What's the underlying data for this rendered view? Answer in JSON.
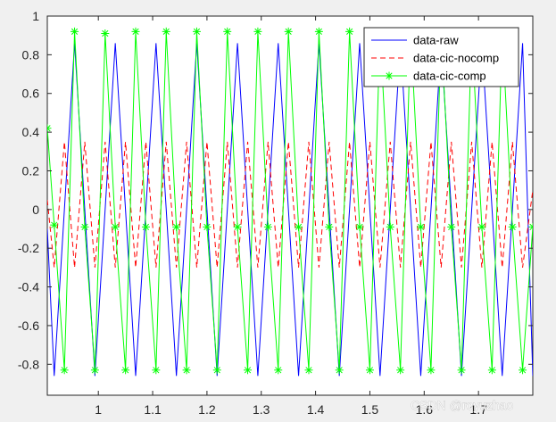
{
  "watermark": "CSDN @royuzhao",
  "chart_data": {
    "type": "line",
    "title": "",
    "xlabel": "",
    "ylabel": "",
    "xlim": [
      0.906,
      1.8
    ],
    "ylim": [
      -0.96,
      1.0
    ],
    "grid": false,
    "legend": {
      "placement": "top-right"
    },
    "x_ticks": [
      1,
      1.1,
      1.2,
      1.3,
      1.4,
      1.5,
      1.6,
      1.7
    ],
    "x_tick_labels": [
      "1",
      "1.1",
      "1.2",
      "1.3",
      "1.4",
      "1.5",
      "1.6",
      "1.7"
    ],
    "y_ticks": [
      1,
      0.8,
      0.6,
      0.4,
      0.2,
      0,
      -0.2,
      -0.4,
      -0.6,
      -0.8
    ],
    "y_tick_labels": [
      "1",
      "0.8",
      "0.6",
      "0.4",
      "0.2",
      "0",
      "-0.2",
      "-0.4",
      "-0.6",
      "-0.8"
    ],
    "series": [
      {
        "name": "data-raw",
        "color": "#0000ff",
        "style": "solid",
        "marker": "none",
        "x": [
          0.906,
          0.9187,
          0.9375,
          0.9562,
          0.975,
          0.9937,
          1.0125,
          1.0312,
          1.05,
          1.0687,
          1.0875,
          1.1062,
          1.125,
          1.1437,
          1.1625,
          1.1812,
          1.2,
          1.2187,
          1.2375,
          1.2562,
          1.275,
          1.2937,
          1.3125,
          1.3312,
          1.35,
          1.3687,
          1.3875,
          1.4062,
          1.425,
          1.4437,
          1.4625,
          1.4812,
          1.5,
          1.5187,
          1.5375,
          1.5562,
          1.575,
          1.5937,
          1.6125,
          1.6312,
          1.65,
          1.6687,
          1.6875,
          1.7062,
          1.725,
          1.7437,
          1.7625,
          1.7812,
          1.8
        ],
        "y": [
          -0.1,
          -0.86,
          0.0,
          0.86,
          0.0,
          -0.86,
          0.0,
          0.86,
          0.0,
          -0.86,
          0.0,
          0.86,
          0.0,
          -0.86,
          0.0,
          0.86,
          0.0,
          -0.86,
          0.0,
          0.86,
          0.0,
          -0.86,
          0.0,
          0.86,
          0.0,
          -0.86,
          0.0,
          0.86,
          0.0,
          -0.86,
          0.0,
          0.86,
          0.0,
          -0.86,
          0.0,
          0.86,
          0.0,
          -0.86,
          0.0,
          0.86,
          0.0,
          -0.86,
          0.0,
          0.86,
          0.0,
          -0.86,
          0.0,
          0.86,
          -0.86
        ]
      },
      {
        "name": "data-cic-nocomp",
        "color": "#ff0000",
        "style": "dashed",
        "marker": "none",
        "x": [
          0.906,
          0.9187,
          0.9375,
          0.9562,
          0.975,
          0.9937,
          1.0125,
          1.0312,
          1.05,
          1.0687,
          1.0875,
          1.1062,
          1.125,
          1.1437,
          1.1625,
          1.1812,
          1.2,
          1.2187,
          1.2375,
          1.2562,
          1.275,
          1.2937,
          1.3125,
          1.3312,
          1.35,
          1.3687,
          1.3875,
          1.4062,
          1.425,
          1.4437,
          1.4625,
          1.4812,
          1.5,
          1.5187,
          1.5375,
          1.5562,
          1.575,
          1.5937,
          1.6125,
          1.6312,
          1.65,
          1.6687,
          1.6875,
          1.7062,
          1.725,
          1.7437,
          1.7625,
          1.7812,
          1.8
        ],
        "y": [
          0.05,
          -0.3,
          0.35,
          -0.3,
          0.35,
          -0.3,
          0.35,
          -0.3,
          0.35,
          -0.3,
          0.35,
          -0.3,
          0.35,
          -0.3,
          0.35,
          -0.3,
          0.35,
          -0.3,
          0.35,
          -0.3,
          0.35,
          -0.3,
          0.35,
          -0.3,
          0.35,
          -0.3,
          0.35,
          -0.3,
          0.35,
          -0.3,
          0.35,
          -0.3,
          0.35,
          -0.3,
          0.35,
          -0.3,
          0.35,
          -0.3,
          0.35,
          -0.3,
          0.35,
          -0.3,
          0.35,
          -0.3,
          0.35,
          -0.3,
          0.35,
          -0.3,
          0.1
        ]
      },
      {
        "name": "data-cic-comp",
        "color": "#00ff00",
        "style": "solid",
        "marker": "asterisk",
        "x": [
          0.906,
          0.9187,
          0.9375,
          0.9562,
          0.975,
          0.9937,
          1.0125,
          1.0312,
          1.05,
          1.0687,
          1.0875,
          1.1062,
          1.125,
          1.1437,
          1.1625,
          1.1812,
          1.2,
          1.2187,
          1.2375,
          1.2562,
          1.275,
          1.2937,
          1.3125,
          1.3312,
          1.35,
          1.3687,
          1.3875,
          1.4062,
          1.425,
          1.4437,
          1.4625,
          1.4812,
          1.5,
          1.5187,
          1.5375,
          1.5562,
          1.575,
          1.5937,
          1.6125,
          1.6312,
          1.65,
          1.6687,
          1.6875,
          1.7062,
          1.725,
          1.7437,
          1.7625,
          1.7812,
          1.8
        ],
        "y": [
          0.42,
          -0.08,
          -0.83,
          0.92,
          -0.09,
          -0.83,
          0.91,
          -0.09,
          -0.83,
          0.92,
          -0.09,
          -0.83,
          0.92,
          -0.09,
          -0.83,
          0.92,
          -0.09,
          -0.83,
          0.92,
          -0.09,
          -0.83,
          0.92,
          -0.09,
          -0.83,
          0.92,
          -0.09,
          -0.83,
          0.92,
          -0.09,
          -0.83,
          0.92,
          -0.09,
          -0.83,
          0.92,
          -0.09,
          -0.83,
          0.92,
          -0.09,
          -0.83,
          0.92,
          -0.09,
          -0.83,
          0.92,
          -0.09,
          -0.83,
          0.92,
          -0.09,
          -0.83,
          -0.09
        ]
      }
    ]
  }
}
